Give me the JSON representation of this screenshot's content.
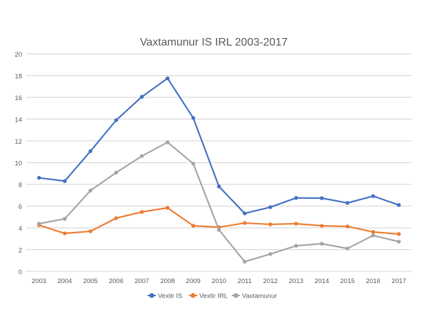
{
  "chart_data": {
    "type": "line",
    "title": "Vaxtamunur IS IRL 2003-2017",
    "xlabel": "",
    "ylabel": "",
    "categories": [
      "2003",
      "2004",
      "2005",
      "2006",
      "2007",
      "2008",
      "2009",
      "2010",
      "2011",
      "2012",
      "2013",
      "2014",
      "2015",
      "2016",
      "2017"
    ],
    "ylim": [
      0,
      20
    ],
    "yticks": [
      0,
      2,
      4,
      6,
      8,
      10,
      12,
      14,
      16,
      18,
      20
    ],
    "grid": true,
    "legend": "bottom",
    "series": [
      {
        "name": "Vextir IS",
        "color": "#4472C4",
        "values": [
          8.6,
          8.3,
          11.05,
          13.9,
          16.05,
          17.75,
          14.1,
          7.8,
          5.33,
          5.9,
          6.75,
          6.73,
          6.29,
          6.92,
          6.1
        ]
      },
      {
        "name": "Vextir IRL",
        "color": "#ED7D31",
        "values": [
          4.25,
          3.49,
          3.68,
          4.89,
          5.46,
          5.84,
          4.19,
          4.06,
          4.44,
          4.32,
          4.38,
          4.19,
          4.13,
          3.62,
          3.43
        ]
      },
      {
        "name": "Vaxtamunur",
        "color": "#A5A5A5",
        "values": [
          4.38,
          4.83,
          7.43,
          9.08,
          10.6,
          11.87,
          9.9,
          3.81,
          0.89,
          1.59,
          2.35,
          2.54,
          2.1,
          3.3,
          2.73
        ]
      }
    ]
  }
}
